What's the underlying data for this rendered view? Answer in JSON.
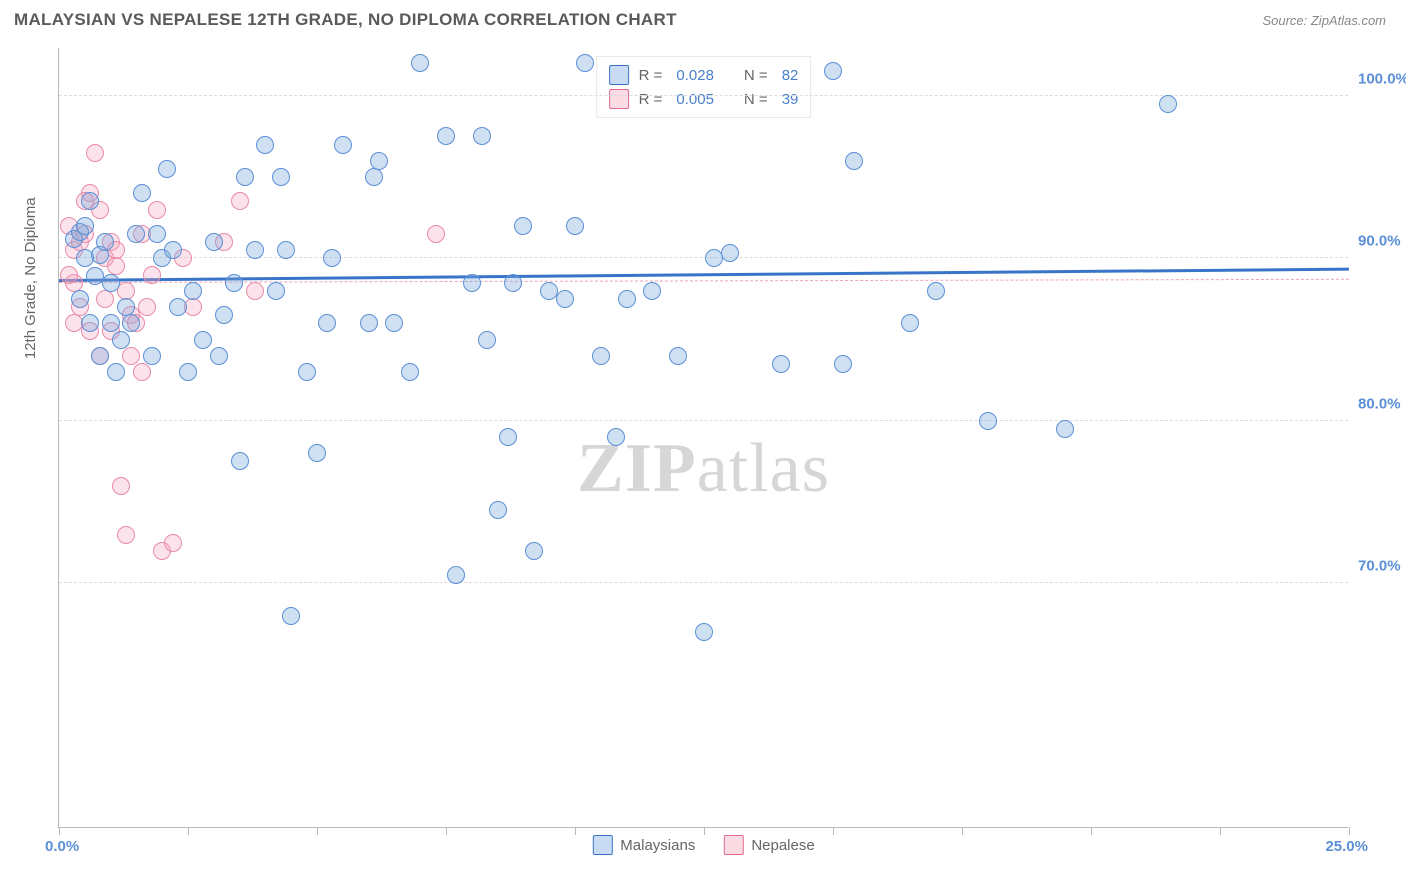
{
  "header": {
    "title": "MALAYSIAN VS NEPALESE 12TH GRADE, NO DIPLOMA CORRELATION CHART",
    "source": "Source: ZipAtlas.com"
  },
  "chart": {
    "type": "scatter",
    "y_axis_title": "12th Grade, No Diploma",
    "xlim": [
      0,
      25
    ],
    "ylim": [
      55,
      103
    ],
    "x_ticks": [
      0,
      2.5,
      5,
      7.5,
      10,
      12.5,
      15,
      17.5,
      20,
      22.5,
      25
    ],
    "y_gridlines": [
      70,
      80,
      90,
      100
    ],
    "y_tick_labels": [
      "70.0%",
      "80.0%",
      "90.0%",
      "100.0%"
    ],
    "x_start_label": "0.0%",
    "x_end_label": "25.0%",
    "background_color": "#ffffff",
    "grid_color": "#dcdcdc",
    "axis_color": "#b8b8b8",
    "series": {
      "malaysians": {
        "label": "Malaysians",
        "fill_color": "rgba(120,165,220,0.35)",
        "stroke_color": "#5b8fd6",
        "marker_radius": 9,
        "trend": {
          "y1": 88.6,
          "y2": 89.3,
          "color": "#3974c8",
          "width": 2.5,
          "style": "solid"
        },
        "stats": {
          "R": "0.028",
          "N": "82"
        },
        "points": [
          [
            0.3,
            91.2
          ],
          [
            0.4,
            91.6
          ],
          [
            0.5,
            92.0
          ],
          [
            0.8,
            90.2
          ],
          [
            0.9,
            91.0
          ],
          [
            0.6,
            93.5
          ],
          [
            0.7,
            88.9
          ],
          [
            1.0,
            86.0
          ],
          [
            1.2,
            85.0
          ],
          [
            1.1,
            83.0
          ],
          [
            1.3,
            87.0
          ],
          [
            1.5,
            91.5
          ],
          [
            1.6,
            94.0
          ],
          [
            2.0,
            90.0
          ],
          [
            2.1,
            95.5
          ],
          [
            2.2,
            90.5
          ],
          [
            2.5,
            83.0
          ],
          [
            2.8,
            85.0
          ],
          [
            3.0,
            91.0
          ],
          [
            3.2,
            86.5
          ],
          [
            3.5,
            77.5
          ],
          [
            3.6,
            95.0
          ],
          [
            3.8,
            90.5
          ],
          [
            4.0,
            97.0
          ],
          [
            4.2,
            88.0
          ],
          [
            4.4,
            90.5
          ],
          [
            4.5,
            68.0
          ],
          [
            4.8,
            83.0
          ],
          [
            5.0,
            78.0
          ],
          [
            5.2,
            86.0
          ],
          [
            5.3,
            90.0
          ],
          [
            5.5,
            97.0
          ],
          [
            6.0,
            86.0
          ],
          [
            6.1,
            95.0
          ],
          [
            6.2,
            96.0
          ],
          [
            6.5,
            86.0
          ],
          [
            6.8,
            83.0
          ],
          [
            7.0,
            102.0
          ],
          [
            7.5,
            97.5
          ],
          [
            7.7,
            70.5
          ],
          [
            8.0,
            88.5
          ],
          [
            8.2,
            97.5
          ],
          [
            8.3,
            85.0
          ],
          [
            8.5,
            74.5
          ],
          [
            8.7,
            79.0
          ],
          [
            8.8,
            88.5
          ],
          [
            9.0,
            92.0
          ],
          [
            9.2,
            72.0
          ],
          [
            9.5,
            88.0
          ],
          [
            9.8,
            87.5
          ],
          [
            10.0,
            92.0
          ],
          [
            10.2,
            102.0
          ],
          [
            10.5,
            84.0
          ],
          [
            10.8,
            79.0
          ],
          [
            11.0,
            87.5
          ],
          [
            11.5,
            88.0
          ],
          [
            12.0,
            84.0
          ],
          [
            12.5,
            67.0
          ],
          [
            12.7,
            90.0
          ],
          [
            13.0,
            90.3
          ],
          [
            14.0,
            83.5
          ],
          [
            15.0,
            101.5
          ],
          [
            15.2,
            83.5
          ],
          [
            15.4,
            96.0
          ],
          [
            16.5,
            86.0
          ],
          [
            17.0,
            88.0
          ],
          [
            18.0,
            80.0
          ],
          [
            19.5,
            79.5
          ],
          [
            21.5,
            99.5
          ],
          [
            0.4,
            87.5
          ],
          [
            0.6,
            86.0
          ],
          [
            0.8,
            84.0
          ],
          [
            1.0,
            88.5
          ],
          [
            1.4,
            86.0
          ],
          [
            1.8,
            84.0
          ],
          [
            2.3,
            87.0
          ],
          [
            2.6,
            88.0
          ],
          [
            3.1,
            84.0
          ],
          [
            3.4,
            88.5
          ],
          [
            1.9,
            91.5
          ],
          [
            4.3,
            95.0
          ],
          [
            0.5,
            90.0
          ]
        ]
      },
      "nepalese": {
        "label": "Nepalese",
        "fill_color": "rgba(245,160,185,0.3)",
        "stroke_color": "#e88ba8",
        "marker_radius": 9,
        "trend": {
          "y1": 88.5,
          "y2": 88.7,
          "color": "#eca3b8",
          "width": 1.6,
          "style": "dashed"
        },
        "stats": {
          "R": "0.005",
          "N": "39"
        },
        "points": [
          [
            0.2,
            92.0
          ],
          [
            0.3,
            90.5
          ],
          [
            0.4,
            91.0
          ],
          [
            0.5,
            91.5
          ],
          [
            0.6,
            94.0
          ],
          [
            0.7,
            96.5
          ],
          [
            0.8,
            93.0
          ],
          [
            0.9,
            90.0
          ],
          [
            1.0,
            91.0
          ],
          [
            1.1,
            89.5
          ],
          [
            1.3,
            88.0
          ],
          [
            1.4,
            86.5
          ],
          [
            1.5,
            86.0
          ],
          [
            1.6,
            83.0
          ],
          [
            1.7,
            87.0
          ],
          [
            1.8,
            89.0
          ],
          [
            2.0,
            72.0
          ],
          [
            2.2,
            72.5
          ],
          [
            0.3,
            88.5
          ],
          [
            0.4,
            87.0
          ],
          [
            0.6,
            85.5
          ],
          [
            1.2,
            76.0
          ],
          [
            1.3,
            73.0
          ],
          [
            0.8,
            84.0
          ],
          [
            1.0,
            85.5
          ],
          [
            1.9,
            93.0
          ],
          [
            1.6,
            91.5
          ],
          [
            3.2,
            91.0
          ],
          [
            3.5,
            93.5
          ],
          [
            3.8,
            88.0
          ],
          [
            0.5,
            93.5
          ],
          [
            0.2,
            89.0
          ],
          [
            0.9,
            87.5
          ],
          [
            1.1,
            90.5
          ],
          [
            1.4,
            84.0
          ],
          [
            2.4,
            90.0
          ],
          [
            2.6,
            87.0
          ],
          [
            7.3,
            91.5
          ],
          [
            0.3,
            86.0
          ]
        ]
      }
    },
    "legend_top": {
      "r_label": "R =",
      "n_label": "N ="
    },
    "watermark": {
      "part1": "ZIP",
      "part2": "atlas"
    }
  }
}
